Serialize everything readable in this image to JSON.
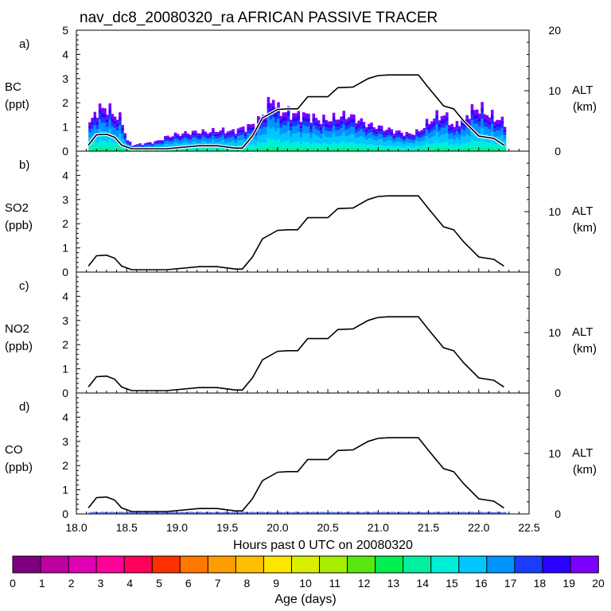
{
  "chart_data": {
    "type": "area",
    "title": "nav_dc8_20080320_ra AFRICAN PASSIVE TRACER",
    "xlabel": "Hours past 0 UTC on 20080320",
    "xlim": [
      18.0,
      22.5
    ],
    "x_ticks": [
      "18.0",
      "18.5",
      "19.0",
      "19.5",
      "20.0",
      "20.5",
      "21.0",
      "21.5",
      "22.0",
      "22.5"
    ],
    "y_ticks_left": [
      "0",
      "1",
      "2",
      "3",
      "4",
      "5"
    ],
    "y_ticks_right": [
      "0",
      "10",
      "20"
    ],
    "right_axis": {
      "label": "ALT",
      "units": "(km)",
      "ylim": [
        0,
        20
      ]
    },
    "panels": [
      {
        "letter": "a)",
        "species": "BC",
        "units": "(ppt)",
        "ylim": [
          0,
          5
        ],
        "show_top_ticks": true,
        "tracer_scale": 1.0
      },
      {
        "letter": "b)",
        "species": "SO2",
        "units": "(ppb)",
        "ylim": [
          0,
          5
        ],
        "show_top_ticks": false,
        "tracer_scale": 0.0
      },
      {
        "letter": "c)",
        "species": "NO2",
        "units": "(ppb)",
        "ylim": [
          0,
          5
        ],
        "show_top_ticks": false,
        "tracer_scale": 0.0
      },
      {
        "letter": "d)",
        "species": "CO",
        "units": "(ppb)",
        "ylim": [
          0,
          5
        ],
        "show_top_ticks": false,
        "tracer_scale": 0.07
      }
    ],
    "altitude_km": {
      "x": [
        18.12,
        18.2,
        18.3,
        18.38,
        18.45,
        18.55,
        18.9,
        19.22,
        19.4,
        19.58,
        19.65,
        19.75,
        19.85,
        20.0,
        20.1,
        20.2,
        20.3,
        20.5,
        20.6,
        20.75,
        20.9,
        21.0,
        21.1,
        21.4,
        21.5,
        21.65,
        21.75,
        21.85,
        22.0,
        22.15,
        22.25
      ],
      "y": [
        1.0,
        2.7,
        2.8,
        2.3,
        1.0,
        0.4,
        0.4,
        0.9,
        0.9,
        0.5,
        0.5,
        2.5,
        5.5,
        6.9,
        7.0,
        7.0,
        9.0,
        9.0,
        10.5,
        10.6,
        12.0,
        12.5,
        12.6,
        12.6,
        10.5,
        7.5,
        7.0,
        5.0,
        2.5,
        2.1,
        1.0
      ]
    },
    "bc_total_ppt": {
      "x": [
        18.12,
        18.2,
        18.3,
        18.38,
        18.45,
        18.5,
        18.55,
        18.65,
        18.8,
        18.9,
        19.0,
        19.1,
        19.2,
        19.3,
        19.4,
        19.5,
        19.55,
        19.6,
        19.65,
        19.7,
        19.75,
        19.8,
        19.9,
        19.95,
        20.0,
        20.1,
        20.2,
        20.3,
        20.4,
        20.5,
        20.6,
        20.7,
        20.8,
        20.9,
        21.0,
        21.1,
        21.2,
        21.3,
        21.4,
        21.5,
        21.6,
        21.7,
        21.75,
        21.8,
        21.85,
        21.9,
        22.0,
        22.1,
        22.2,
        22.25
      ],
      "y": [
        1.0,
        1.7,
        1.8,
        1.5,
        1.3,
        0.5,
        0.25,
        0.3,
        0.4,
        0.6,
        0.7,
        0.75,
        0.8,
        0.8,
        0.85,
        0.85,
        0.8,
        0.9,
        0.95,
        1.0,
        1.1,
        1.2,
        1.8,
        2.3,
        1.7,
        1.6,
        1.5,
        1.5,
        1.3,
        1.3,
        1.4,
        1.5,
        1.3,
        1.1,
        1.0,
        0.9,
        0.8,
        0.7,
        0.8,
        1.2,
        1.5,
        1.4,
        0.9,
        1.3,
        1.2,
        1.6,
        1.8,
        1.5,
        1.3,
        1.2
      ]
    },
    "colorbar": {
      "label": "Age (days)",
      "ticks": [
        "0",
        "1",
        "2",
        "3",
        "4",
        "5",
        "6",
        "7",
        "8",
        "9",
        "10",
        "11",
        "12",
        "13",
        "14",
        "15",
        "16",
        "17",
        "18",
        "19",
        "20"
      ],
      "colors": [
        "#7f007f",
        "#bf00a0",
        "#e000b4",
        "#ff0098",
        "#ff005a",
        "#ff3000",
        "#ff7800",
        "#ff9c00",
        "#ffbe00",
        "#ffe600",
        "#d8f000",
        "#a8ec00",
        "#58e810",
        "#00f050",
        "#00f0a0",
        "#00eed8",
        "#00c8ff",
        "#0094ff",
        "#1a3cff",
        "#2a00ff",
        "#7c00ff"
      ]
    }
  }
}
